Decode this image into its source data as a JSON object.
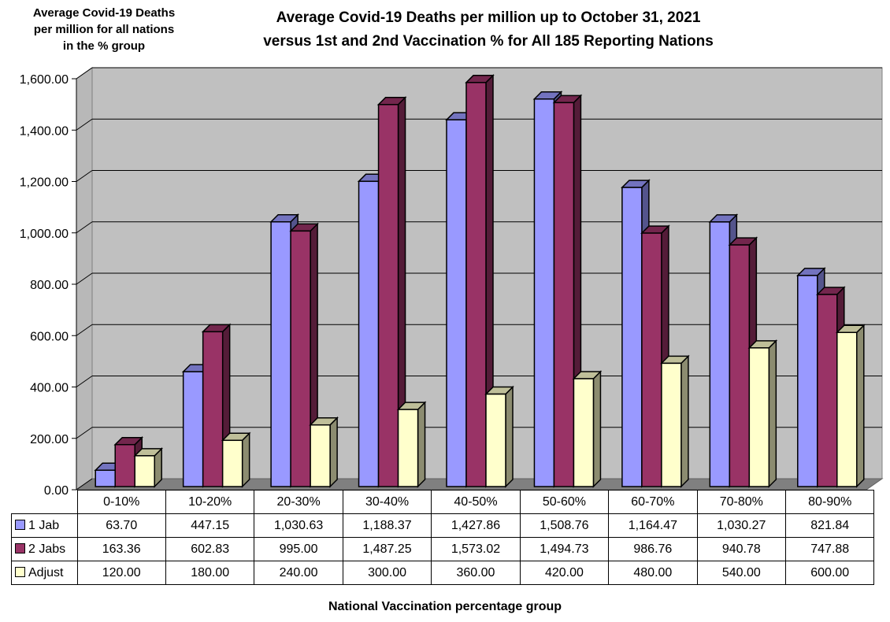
{
  "chart_data": {
    "type": "bar",
    "title": "Average Covid-19 Deaths per million up to October 31, 2021 versus 1st and 2nd Vaccination % for All 185 Reporting Nations",
    "title_lines": [
      "Average Covid-19 Deaths per million up to October 31, 2021",
      "versus 1st and 2nd Vaccination % for All 185 Reporting Nations"
    ],
    "ylabel": "Average Covid-19 Deaths per million for all nations in the % group",
    "ylabel_lines": [
      "Average Covid-19 Deaths",
      "per million for all nations",
      "in the % group"
    ],
    "xlabel": "National Vaccination percentage group",
    "ylim": [
      0,
      1600
    ],
    "yticks": [
      0,
      200,
      400,
      600,
      800,
      1000,
      1200,
      1400,
      1600
    ],
    "ytick_labels": [
      "0.00",
      "200.00",
      "400.00",
      "600.00",
      "800.00",
      "1,000.00",
      "1,200.00",
      "1,400.00",
      "1,600.00"
    ],
    "grid": true,
    "legend": "data-table-left",
    "categories": [
      "0-10%",
      "10-20%",
      "20-30%",
      "30-40%",
      "40-50%",
      "50-60%",
      "60-70%",
      "70-80%",
      "80-90%"
    ],
    "series": [
      {
        "name": "1 Jab",
        "color": "#9999ff",
        "values": [
          63.7,
          447.15,
          1030.63,
          1188.37,
          1427.86,
          1508.76,
          1164.47,
          1030.27,
          821.84
        ],
        "labels": [
          "63.70",
          "447.15",
          "1,030.63",
          "1,188.37",
          "1,427.86",
          "1,508.76",
          "1,164.47",
          "1,030.27",
          "821.84"
        ]
      },
      {
        "name": "2 Jabs",
        "color": "#993366",
        "values": [
          163.36,
          602.83,
          995.0,
          1487.25,
          1573.02,
          1494.73,
          986.76,
          940.78,
          747.88
        ],
        "labels": [
          "163.36",
          "602.83",
          "995.00",
          "1,487.25",
          "1,573.02",
          "1,494.73",
          "986.76",
          "940.78",
          "747.88"
        ]
      },
      {
        "name": "Adjust",
        "color": "#ffffcc",
        "values": [
          120.0,
          180.0,
          240.0,
          300.0,
          360.0,
          420.0,
          480.0,
          540.0,
          600.0
        ],
        "labels": [
          "120.00",
          "180.00",
          "240.00",
          "300.00",
          "360.00",
          "420.00",
          "480.00",
          "540.00",
          "600.00"
        ]
      }
    ]
  }
}
